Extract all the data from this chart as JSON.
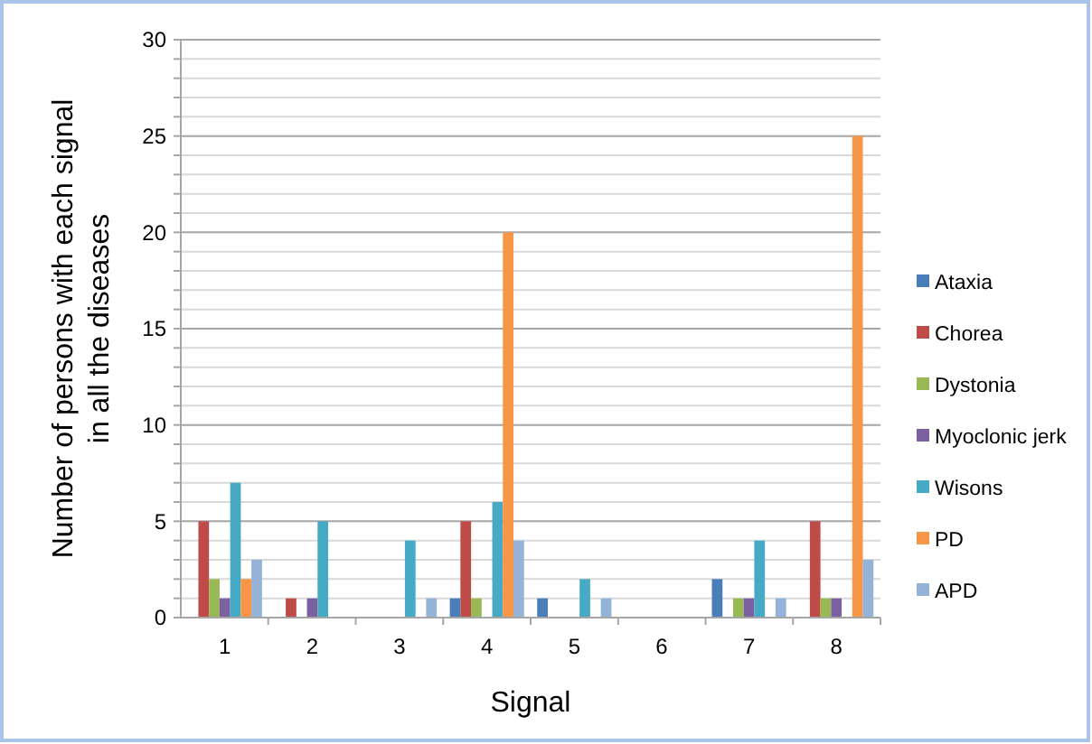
{
  "chart_data": {
    "type": "bar",
    "xlabel": "Signal",
    "ylabel": "Number of persons with each signal in all the diseases",
    "categories": [
      "1",
      "2",
      "3",
      "4",
      "5",
      "6",
      "7",
      "8"
    ],
    "series": [
      {
        "name": "Ataxia",
        "color": "#4a7ebb",
        "values": [
          0,
          0,
          0,
          1,
          1,
          0,
          2,
          0
        ]
      },
      {
        "name": "Chorea",
        "color": "#be4b48",
        "values": [
          5,
          1,
          0,
          5,
          0,
          0,
          0,
          5
        ]
      },
      {
        "name": "Dystonia",
        "color": "#98b954",
        "values": [
          2,
          0,
          0,
          1,
          0,
          0,
          1,
          1
        ]
      },
      {
        "name": "Myoclonic jerk",
        "color": "#7d60a0",
        "values": [
          1,
          1,
          0,
          0,
          0,
          0,
          1,
          1
        ]
      },
      {
        "name": "Wisons",
        "color": "#46aac5",
        "values": [
          7,
          5,
          4,
          6,
          2,
          0,
          4,
          0
        ]
      },
      {
        "name": "PD",
        "color": "#f79646",
        "values": [
          2,
          0,
          0,
          20,
          0,
          0,
          0,
          25
        ]
      },
      {
        "name": "APD",
        "color": "#95b3d7",
        "values": [
          3,
          0,
          1,
          4,
          1,
          0,
          1,
          3
        ]
      }
    ],
    "ylim": [
      0,
      30
    ],
    "yticks": [
      0,
      {
        "value": 1,
        "label": null
      },
      {
        "value": 2,
        "label": null
      },
      {
        "value": 3,
        "label": null
      },
      {
        "value": 4,
        "label": null
      },
      5,
      {
        "value": 6,
        "label": null
      },
      {
        "value": 7,
        "label": null
      },
      {
        "value": 8,
        "label": null
      },
      {
        "value": 9,
        "label": null
      },
      10,
      {
        "value": 11,
        "label": null
      },
      {
        "value": 12,
        "label": null
      },
      {
        "value": 13,
        "label": null
      },
      {
        "value": 14,
        "label": null
      },
      15,
      {
        "value": 16,
        "label": null
      },
      {
        "value": 17,
        "label": null
      },
      {
        "value": 18,
        "label": null
      },
      {
        "value": 19,
        "label": null
      },
      20,
      {
        "value": 21,
        "label": null
      },
      {
        "value": 22,
        "label": null
      },
      {
        "value": 23,
        "label": null
      },
      {
        "value": 24,
        "label": null
      },
      25,
      {
        "value": 26,
        "label": null
      },
      {
        "value": 27,
        "label": null
      },
      {
        "value": 28,
        "label": null
      },
      {
        "value": 29,
        "label": null
      },
      30
    ],
    "grid": "y",
    "legend": "right"
  }
}
